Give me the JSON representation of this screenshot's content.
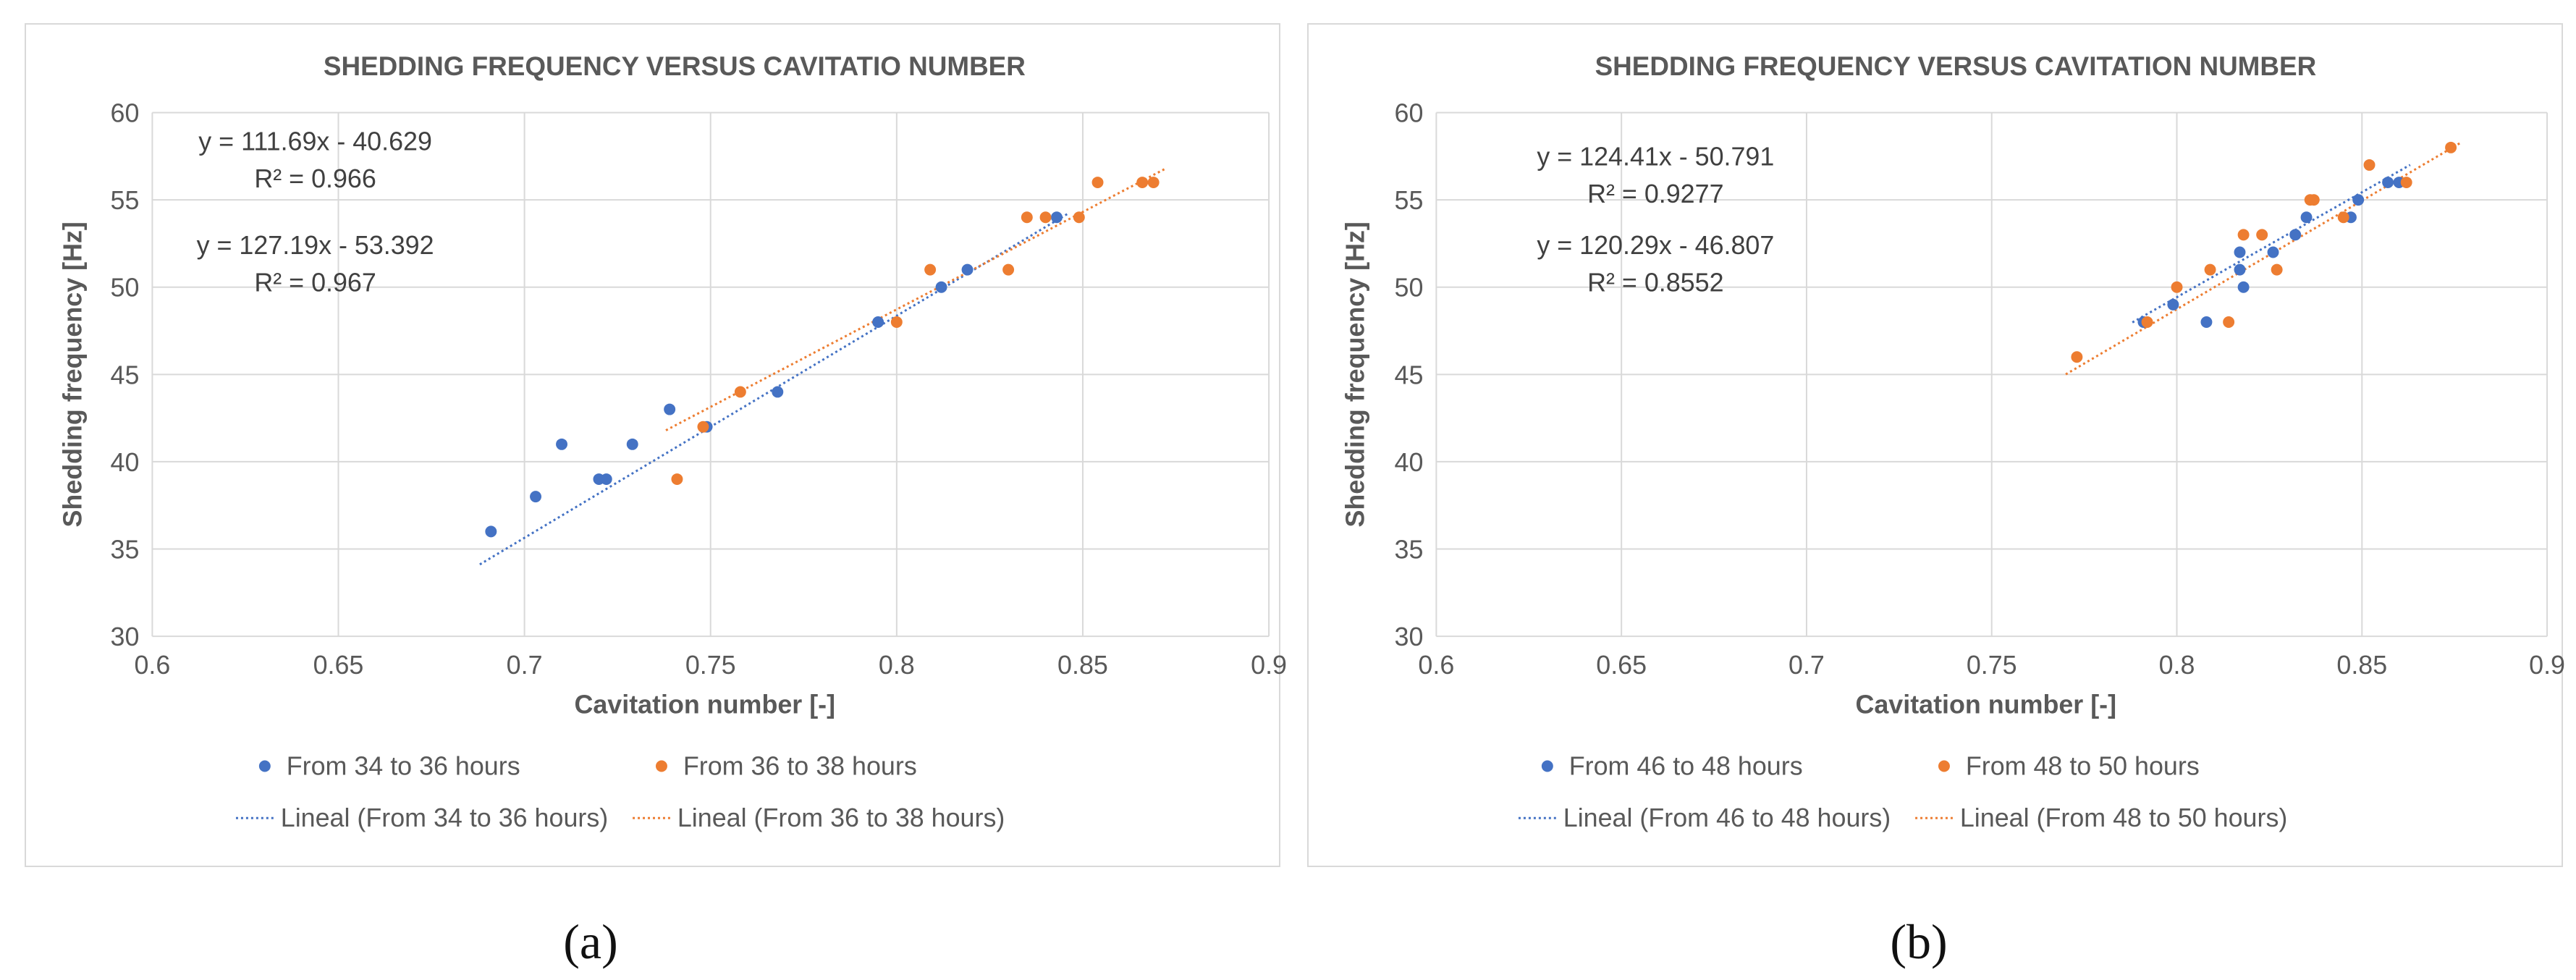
{
  "chart_data": [
    {
      "type": "scatter",
      "panel": "a",
      "title": "SHEDDING FREQUENCY VERSUS CAVITATIO NUMBER",
      "xlabel": "Cavitation number [-]",
      "ylabel": "Shedding frequency [Hz]",
      "xlim": [
        0.6,
        0.9
      ],
      "ylim": [
        30,
        60
      ],
      "xticks": [
        "0.6",
        "0.65",
        "0.7",
        "0.75",
        "0.8",
        "0.85",
        "0.9"
      ],
      "yticks": [
        "30",
        "35",
        "40",
        "45",
        "50",
        "55",
        "60"
      ],
      "grid": true,
      "legend_position": "bottom",
      "series": [
        {
          "name": "From 34 to 36 hours",
          "color": "#4472c4",
          "points": [
            [
              0.691,
              36
            ],
            [
              0.703,
              38
            ],
            [
              0.71,
              41
            ],
            [
              0.72,
              39
            ],
            [
              0.722,
              39
            ],
            [
              0.729,
              41
            ],
            [
              0.739,
              43
            ],
            [
              0.749,
              42
            ],
            [
              0.768,
              44
            ],
            [
              0.795,
              48
            ],
            [
              0.812,
              50
            ],
            [
              0.819,
              51
            ],
            [
              0.843,
              54
            ]
          ]
        },
        {
          "name": "From 36 to 38 hours",
          "color": "#ed7d31",
          "points": [
            [
              0.741,
              39
            ],
            [
              0.748,
              42
            ],
            [
              0.758,
              44
            ],
            [
              0.8,
              48
            ],
            [
              0.809,
              51
            ],
            [
              0.83,
              51
            ],
            [
              0.835,
              54
            ],
            [
              0.84,
              54
            ],
            [
              0.849,
              54
            ],
            [
              0.854,
              56
            ],
            [
              0.866,
              56
            ],
            [
              0.869,
              56
            ]
          ]
        }
      ],
      "trendlines": [
        {
          "name": "Lineal (From 34 to 36 hours)",
          "color": "#4472c4",
          "slope": 127.19,
          "intercept": -53.392,
          "x_range": [
            0.691,
            0.843
          ],
          "equation": "y = 127.19x - 53.392",
          "r2": "R² = 0.967"
        },
        {
          "name": "Lineal (From 36 to 38 hours)",
          "color": "#ed7d31",
          "slope": 111.69,
          "intercept": -40.629,
          "x_range": [
            0.741,
            0.869
          ],
          "equation": "y = 111.69x - 40.629",
          "r2": "R² = 0.966"
        }
      ],
      "caption": "(a)"
    },
    {
      "type": "scatter",
      "panel": "b",
      "title": "SHEDDING FREQUENCY VERSUS CAVITATION NUMBER",
      "xlabel": "Cavitation number [-]",
      "ylabel": "Shedding frequency [Hz]",
      "xlim": [
        0.6,
        0.9
      ],
      "ylim": [
        30,
        60
      ],
      "xticks": [
        "0.6",
        "0.65",
        "0.7",
        "0.75",
        "0.8",
        "0.85",
        "0.9"
      ],
      "yticks": [
        "30",
        "35",
        "40",
        "45",
        "50",
        "55",
        "60"
      ],
      "grid": true,
      "legend_position": "bottom",
      "series": [
        {
          "name": "From 46 to 48 hours",
          "color": "#4472c4",
          "points": [
            [
              0.791,
              48
            ],
            [
              0.799,
              49
            ],
            [
              0.808,
              48
            ],
            [
              0.817,
              52
            ],
            [
              0.817,
              51
            ],
            [
              0.818,
              50
            ],
            [
              0.826,
              52
            ],
            [
              0.832,
              53
            ],
            [
              0.835,
              54
            ],
            [
              0.847,
              54
            ],
            [
              0.849,
              55
            ],
            [
              0.857,
              56
            ],
            [
              0.86,
              56
            ]
          ]
        },
        {
          "name": "From 48 to 50 hours",
          "color": "#ed7d31",
          "points": [
            [
              0.773,
              46
            ],
            [
              0.792,
              48
            ],
            [
              0.8,
              50
            ],
            [
              0.809,
              51
            ],
            [
              0.814,
              48
            ],
            [
              0.818,
              53
            ],
            [
              0.823,
              53
            ],
            [
              0.827,
              51
            ],
            [
              0.836,
              55
            ],
            [
              0.837,
              55
            ],
            [
              0.845,
              54
            ],
            [
              0.852,
              57
            ],
            [
              0.862,
              56
            ],
            [
              0.874,
              58
            ]
          ]
        }
      ],
      "trendlines": [
        {
          "name": "Lineal (From 46 to 48 hours)",
          "color": "#4472c4",
          "slope": 120.29,
          "intercept": -46.807,
          "x_range": [
            0.791,
            0.86
          ],
          "equation": "y = 120.29x - 46.807",
          "r2": "R² = 0.8552"
        },
        {
          "name": "Lineal (From 48 to 50 hours)",
          "color": "#ed7d31",
          "slope": 124.41,
          "intercept": -50.791,
          "x_range": [
            0.773,
            0.874
          ],
          "equation": "y = 124.41x - 50.791",
          "r2": "R² = 0.9277"
        }
      ],
      "caption": "(b)"
    }
  ]
}
